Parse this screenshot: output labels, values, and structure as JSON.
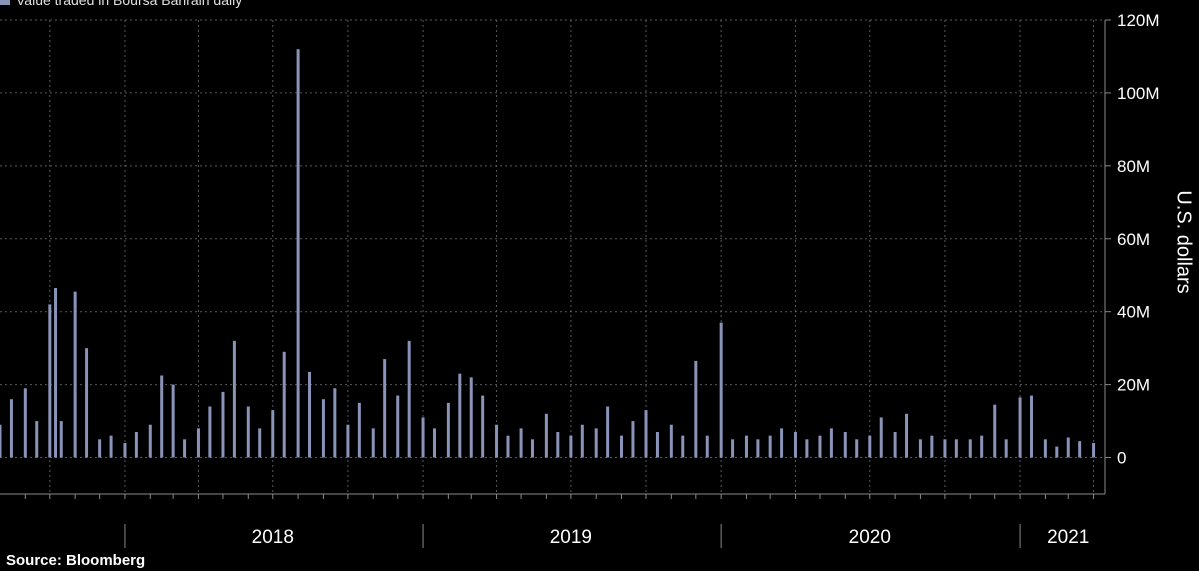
{
  "legend": {
    "label": "Value traded in Boursa Bahrain daily"
  },
  "source": "Source: Bloomberg",
  "colors": {
    "bar": "#8a93b8",
    "grid": "#5a5a5a",
    "axis": "#8a8a8a",
    "background": "#000000"
  },
  "chart_data": {
    "type": "bar",
    "series": [
      {
        "name": "Value traded in Boursa Bahrain daily"
      }
    ],
    "ylabel": "U.S. dollars",
    "ylim": [
      -10000000,
      120000000
    ],
    "yticks": [
      0,
      20000000,
      40000000,
      60000000,
      80000000,
      100000000,
      120000000
    ],
    "ytick_labels": [
      "0",
      "20M",
      "40M",
      "60M",
      "80M",
      "100M",
      "120M"
    ],
    "xlim": [
      "2017-08-01",
      "2021-04-15"
    ],
    "year_labels": [
      {
        "label": "2018",
        "date": "2018-07-01"
      },
      {
        "label": "2019",
        "date": "2019-07-01"
      },
      {
        "label": "2020",
        "date": "2020-07-01"
      },
      {
        "label": "2021",
        "date": "2021-03-01"
      }
    ],
    "x": [
      "2017-08-01",
      "2017-08-15",
      "2017-09-01",
      "2017-09-15",
      "2017-10-01",
      "2017-10-08",
      "2017-10-15",
      "2017-11-01",
      "2017-11-15",
      "2017-12-01",
      "2017-12-15",
      "2018-01-01",
      "2018-01-15",
      "2018-02-01",
      "2018-02-15",
      "2018-03-01",
      "2018-03-15",
      "2018-04-01",
      "2018-04-15",
      "2018-05-01",
      "2018-05-15",
      "2018-06-01",
      "2018-06-15",
      "2018-07-01",
      "2018-07-15",
      "2018-08-01",
      "2018-08-15",
      "2018-09-01",
      "2018-09-15",
      "2018-10-01",
      "2018-10-15",
      "2018-11-01",
      "2018-11-15",
      "2018-12-01",
      "2018-12-15",
      "2019-01-01",
      "2019-01-15",
      "2019-02-01",
      "2019-02-15",
      "2019-03-01",
      "2019-03-15",
      "2019-04-01",
      "2019-04-15",
      "2019-05-01",
      "2019-05-15",
      "2019-06-01",
      "2019-06-15",
      "2019-07-01",
      "2019-07-15",
      "2019-08-01",
      "2019-08-15",
      "2019-09-01",
      "2019-09-15",
      "2019-10-01",
      "2019-10-15",
      "2019-11-01",
      "2019-11-15",
      "2019-12-01",
      "2019-12-15",
      "2020-01-01",
      "2020-01-15",
      "2020-02-01",
      "2020-02-15",
      "2020-03-01",
      "2020-03-15",
      "2020-04-01",
      "2020-04-15",
      "2020-05-01",
      "2020-05-15",
      "2020-06-01",
      "2020-06-15",
      "2020-07-01",
      "2020-07-15",
      "2020-08-01",
      "2020-08-15",
      "2020-09-01",
      "2020-09-15",
      "2020-10-01",
      "2020-10-15",
      "2020-11-01",
      "2020-11-15",
      "2020-12-01",
      "2020-12-15",
      "2021-01-01",
      "2021-01-15",
      "2021-02-01",
      "2021-02-15",
      "2021-03-01",
      "2021-03-15",
      "2021-04-01"
    ],
    "values": [
      9000000,
      16000000,
      19000000,
      10000000,
      42000000,
      46500000,
      10000000,
      45500000,
      30000000,
      5000000,
      6000000,
      4000000,
      7000000,
      9000000,
      22500000,
      20000000,
      5000000,
      8000000,
      14000000,
      18000000,
      32000000,
      14000000,
      8000000,
      13000000,
      29000000,
      112000000,
      23500000,
      16000000,
      19000000,
      9000000,
      15000000,
      8000000,
      27000000,
      17000000,
      32000000,
      11000000,
      8000000,
      15000000,
      23000000,
      22000000,
      17000000,
      9000000,
      6000000,
      8000000,
      5000000,
      12000000,
      7000000,
      6000000,
      9000000,
      8000000,
      14000000,
      6000000,
      10000000,
      13000000,
      7000000,
      9000000,
      6000000,
      26500000,
      6000000,
      37000000,
      5000000,
      6000000,
      5000000,
      6000000,
      8000000,
      7000000,
      5000000,
      6000000,
      8000000,
      7000000,
      5000000,
      6000000,
      11000000,
      7000000,
      12000000,
      5000000,
      6000000,
      5000000,
      5000000,
      5000000,
      6000000,
      14500000,
      5000000,
      16500000,
      17000000,
      5000000,
      3000000,
      5500000,
      4500000,
      4000000
    ]
  }
}
